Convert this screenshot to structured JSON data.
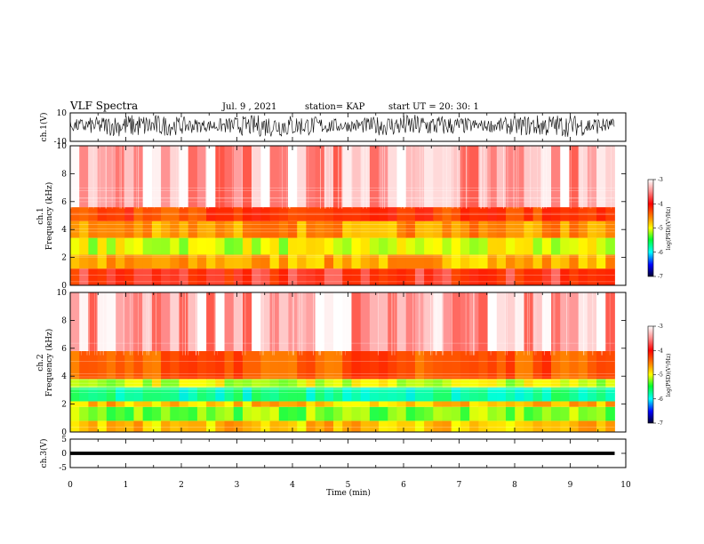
{
  "header": {
    "title": "VLF Spectra",
    "date": "Jul. 9 , 2021",
    "station": "station= KAP",
    "start": "start UT = 20: 30: 1"
  },
  "chart_data": [
    {
      "type": "line",
      "name": "channel-1-waveform",
      "ylabel": "ch.1(V)",
      "ylim": [
        -10,
        10
      ],
      "ytick_labels": [
        "10",
        "-10"
      ],
      "xlim": [
        0,
        10
      ],
      "description_values": "noisy voltage trace spanning roughly -8 to +9 V over 0 to 9.8 min"
    },
    {
      "type": "heatmap",
      "name": "channel-1-spectrogram",
      "ylabel": "ch.1\nFrequency (kHz)",
      "ylim": [
        0,
        10
      ],
      "ytick_labels": [
        "0",
        "2",
        "4",
        "6",
        "8",
        "10"
      ],
      "xlim": [
        0,
        10
      ],
      "data_extent_min": 9.8,
      "colorbar": {
        "label": "log(PSD)(V²/Hz)",
        "ticks": [
          "-3",
          "-4",
          "-5",
          "-6",
          "-7"
        ],
        "range": [
          -7,
          -3
        ]
      },
      "bands": [
        {
          "from_khz": 0.0,
          "to_khz": 1.2,
          "level": -3.6
        },
        {
          "from_khz": 1.2,
          "to_khz": 2.2,
          "level": -4.3
        },
        {
          "from_khz": 2.2,
          "to_khz": 3.4,
          "level": -4.7
        },
        {
          "from_khz": 3.4,
          "to_khz": 4.6,
          "level": -4.2
        },
        {
          "from_khz": 4.6,
          "to_khz": 5.6,
          "level": -3.8
        },
        {
          "from_khz": 5.6,
          "to_khz": 10.0,
          "level": -3.2
        }
      ]
    },
    {
      "type": "heatmap",
      "name": "channel-2-spectrogram",
      "ylabel": "ch.2\nFrequency (kHz)",
      "ylim": [
        0,
        10
      ],
      "ytick_labels": [
        "0",
        "2",
        "4",
        "6",
        "8",
        "10"
      ],
      "xlim": [
        0,
        10
      ],
      "data_extent_min": 9.8,
      "colorbar": {
        "label": "log(PSD)(V²/Hz)",
        "ticks": [
          "-3",
          "-4",
          "-5",
          "-6",
          "-7"
        ],
        "range": [
          -7,
          -3
        ]
      },
      "bands": [
        {
          "from_khz": 0.0,
          "to_khz": 0.8,
          "level": -4.4
        },
        {
          "from_khz": 0.8,
          "to_khz": 1.8,
          "level": -4.9
        },
        {
          "from_khz": 1.8,
          "to_khz": 2.2,
          "level": -4.4
        },
        {
          "from_khz": 2.2,
          "to_khz": 3.2,
          "level": -5.4
        },
        {
          "from_khz": 3.2,
          "to_khz": 3.8,
          "level": -4.7
        },
        {
          "from_khz": 3.8,
          "to_khz": 5.8,
          "level": -3.9
        },
        {
          "from_khz": 5.8,
          "to_khz": 10.0,
          "level": -3.2
        }
      ]
    },
    {
      "type": "line",
      "name": "channel-3-waveform",
      "ylabel": "ch.3(V)",
      "ylim": [
        -5,
        5
      ],
      "ytick_labels": [
        "5",
        "0",
        "-5"
      ],
      "xlim": [
        0,
        10
      ],
      "baseline_v": 0,
      "amplitude_v": 0.6
    }
  ],
  "x_axis": {
    "label": "Time (min)",
    "ticks": [
      "0",
      "1",
      "2",
      "3",
      "4",
      "5",
      "6",
      "7",
      "8",
      "9",
      "10"
    ],
    "range": [
      0,
      10
    ]
  },
  "colors": {
    "background_high": "#ffffff",
    "red": "#ff2000",
    "orange": "#ff8000",
    "yellow": "#ffff00",
    "green": "#00ff40",
    "cyan": "#00ffff",
    "blue": "#0000ff",
    "navy": "#000040"
  }
}
